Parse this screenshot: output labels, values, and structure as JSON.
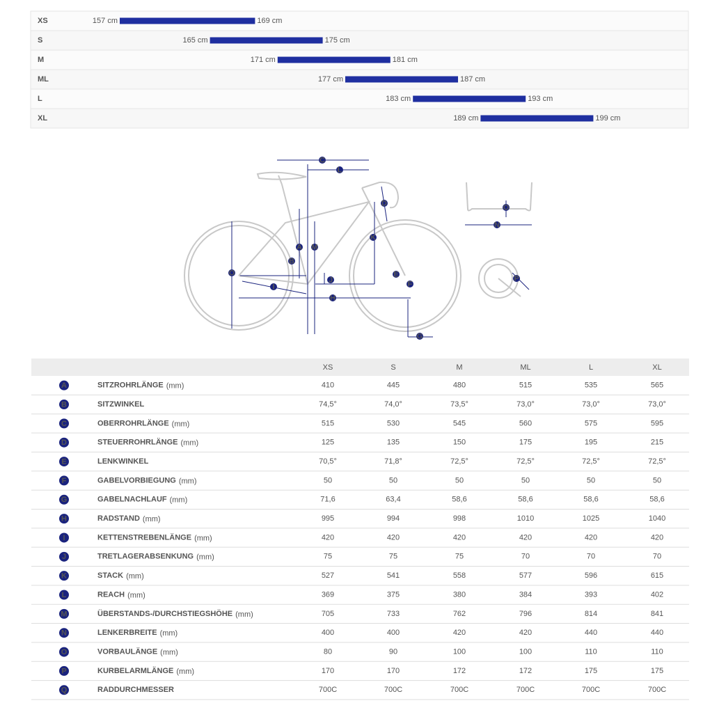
{
  "size_chart": {
    "rows": [
      {
        "size": "XS",
        "range": [
          157,
          169
        ],
        "labels": [
          "157 cm",
          "169 cm"
        ]
      },
      {
        "size": "S",
        "range": [
          165,
          175
        ],
        "labels": [
          "165 cm",
          "175 cm"
        ]
      },
      {
        "size": "M",
        "range": [
          171,
          181
        ],
        "labels": [
          "171 cm",
          "181 cm"
        ]
      },
      {
        "size": "ML",
        "range": [
          177,
          187
        ],
        "labels": [
          "177 cm",
          "187 cm"
        ]
      },
      {
        "size": "L",
        "range": [
          183,
          193
        ],
        "labels": [
          "183 cm",
          "193 cm"
        ]
      },
      {
        "size": "XL",
        "range": [
          189,
          199
        ],
        "labels": [
          "189 cm",
          "199 cm"
        ]
      }
    ]
  },
  "diagram": {
    "labels": [
      "C",
      "L",
      "D",
      "O",
      "N",
      "A",
      "M",
      "K",
      "B",
      "J",
      "E",
      "F",
      "I",
      "H",
      "O",
      "G",
      "P"
    ]
  },
  "table": {
    "header": [
      "XS",
      "S",
      "M",
      "ML",
      "L",
      "XL"
    ],
    "rows": [
      {
        "key": "A",
        "name": "SITZROHRLÄNGE",
        "unit": "(mm)",
        "values": [
          "410",
          "445",
          "480",
          "515",
          "535",
          "565"
        ]
      },
      {
        "key": "B",
        "name": "SITZWINKEL",
        "values": [
          "74,5°",
          "74,0°",
          "73,5°",
          "73,0°",
          "73,0°",
          "73,0°"
        ]
      },
      {
        "key": "C",
        "name": "OBERROHRLÄNGE",
        "unit": "(mm)",
        "values": [
          "515",
          "530",
          "545",
          "560",
          "575",
          "595"
        ]
      },
      {
        "key": "D",
        "name": "STEUERROHRLÄNGE",
        "unit": "(mm)",
        "values": [
          "125",
          "135",
          "150",
          "175",
          "195",
          "215"
        ]
      },
      {
        "key": "E",
        "name": "LENKWINKEL",
        "values": [
          "70,5°",
          "71,8°",
          "72,5°",
          "72,5°",
          "72,5°",
          "72,5°"
        ]
      },
      {
        "key": "F",
        "name": "GABELVORBIEGUNG",
        "unit": "(mm)",
        "values": [
          "50",
          "50",
          "50",
          "50",
          "50",
          "50"
        ]
      },
      {
        "key": "G",
        "name": "GABELNACHLAUF",
        "unit": "(mm)",
        "values": [
          "71,6",
          "63,4",
          "58,6",
          "58,6",
          "58,6",
          "58,6"
        ]
      },
      {
        "key": "H",
        "name": "RADSTAND",
        "unit": "(mm)",
        "values": [
          "995",
          "994",
          "998",
          "1010",
          "1025",
          "1040"
        ]
      },
      {
        "key": "I",
        "name": "KETTENSTREBENLÄNGE",
        "unit": "(mm)",
        "values": [
          "420",
          "420",
          "420",
          "420",
          "420",
          "420"
        ]
      },
      {
        "key": "J",
        "name": "TRETLAGERABSENKUNG",
        "unit": "(mm)",
        "values": [
          "75",
          "75",
          "75",
          "70",
          "70",
          "70"
        ]
      },
      {
        "key": "K",
        "name": "STACK",
        "unit": "(mm)",
        "values": [
          "527",
          "541",
          "558",
          "577",
          "596",
          "615"
        ]
      },
      {
        "key": "L",
        "name": "REACH",
        "unit": "(mm)",
        "values": [
          "369",
          "375",
          "380",
          "384",
          "393",
          "402"
        ]
      },
      {
        "key": "M",
        "name": "ÜBERSTANDS-/DURCHSTIEGSHÖHE",
        "unit": "(mm)",
        "values": [
          "705",
          "733",
          "762",
          "796",
          "814",
          "841"
        ]
      },
      {
        "key": "N",
        "name": "LENKERBREITE",
        "unit": "(mm)",
        "values": [
          "400",
          "400",
          "420",
          "420",
          "440",
          "440"
        ]
      },
      {
        "key": "O",
        "name": "VORBAULÄNGE",
        "unit": "(mm)",
        "values": [
          "80",
          "90",
          "100",
          "100",
          "110",
          "110"
        ]
      },
      {
        "key": "P",
        "name": "KURBELARMLÄNGE",
        "unit": "(mm)",
        "values": [
          "170",
          "170",
          "172",
          "172",
          "175",
          "175"
        ]
      },
      {
        "key": "Q",
        "name": "RADDURCHMESSER",
        "values": [
          "700C",
          "700C",
          "700C",
          "700C",
          "700C",
          "700C"
        ]
      }
    ]
  }
}
